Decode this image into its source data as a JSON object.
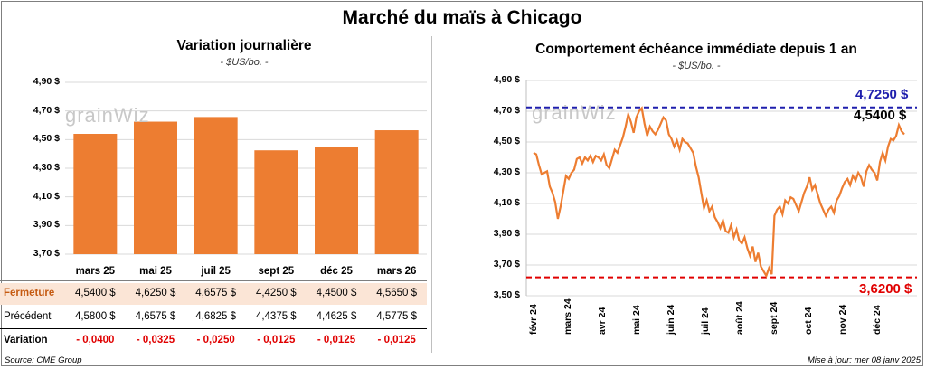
{
  "title": "Marché du maïs à Chicago",
  "left_panel": {
    "subtitle": "Variation journalière",
    "unit": "- $US/bo. -",
    "watermark": "grainWiz",
    "table": {
      "rows": [
        {
          "label": "Fermeture",
          "values": [
            "4,5400  $",
            "4,6250  $",
            "4,6575  $",
            "4,4250  $",
            "4,4500  $",
            "4,5650  $"
          ]
        },
        {
          "label": "Précédent",
          "values": [
            "4,5800  $",
            "4,6575  $",
            "4,6825  $",
            "4,4375  $",
            "4,4625  $",
            "4,5775  $"
          ]
        },
        {
          "label": "Variation",
          "values": [
            "- 0,0400",
            "- 0,0325",
            "- 0,0250",
            "- 0,0125",
            "- 0,0125",
            "- 0,0125"
          ]
        }
      ]
    }
  },
  "right_panel": {
    "subtitle": "Comportement  échéance  immédiate  depuis  1 an",
    "unit": "- $US/bo. -",
    "watermark": "grainWiz",
    "labels": {
      "max": "4,7250 $",
      "last": "4,5400 $",
      "min": "3,6200 $"
    }
  },
  "footer": {
    "source": "Source: CME Group",
    "updated": "Mise à jour: mer 08 janv 2025"
  },
  "colors": {
    "bar": "#ed7d31",
    "line": "#ed7d31",
    "max_line": "#1f1fad",
    "min_line": "#e00000",
    "highlight_row": "#fbe5d6",
    "negative": "#e00000"
  },
  "chart_data": [
    {
      "type": "bar",
      "title": "Variation journalière",
      "subtitle": "- $US/bo. -",
      "categories": [
        "mars 25",
        "mai 25",
        "juil 25",
        "sept 25",
        "déc 25",
        "mars 26"
      ],
      "values": [
        4.54,
        4.625,
        4.6575,
        4.425,
        4.45,
        4.565
      ],
      "ylim": [
        3.7,
        4.9
      ],
      "yticks": [
        "3,70 $",
        "3,90 $",
        "4,10 $",
        "4,30 $",
        "4,50 $",
        "4,70 $",
        "4,90 $"
      ],
      "grid": true
    },
    {
      "type": "line",
      "title": "Comportement  échéance  immédiate  depuis  1 an",
      "subtitle": "- $US/bo. -",
      "x_ticks": [
        "févr 24",
        "mars 24",
        "avr 24",
        "mai 24",
        "juin 24",
        "juil 24",
        "août 24",
        "sept 24",
        "oct 24",
        "nov 24",
        "déc 24"
      ],
      "ylim": [
        3.5,
        4.9
      ],
      "yticks": [
        "3,50 $",
        "3,70 $",
        "3,90 $",
        "4,10 $",
        "4,30 $",
        "4,50 $",
        "4,70 $",
        "4,90 $"
      ],
      "series": [
        {
          "values": [
            4.43,
            4.42,
            4.35,
            4.29,
            4.3,
            4.31,
            4.21,
            4.17,
            4.11,
            4.0,
            4.08,
            4.18,
            4.28,
            4.26,
            4.3,
            4.32,
            4.39,
            4.4,
            4.36,
            4.4,
            4.38,
            4.41,
            4.37,
            4.41,
            4.4,
            4.38,
            4.42,
            4.35,
            4.33,
            4.39,
            4.45,
            4.43,
            4.48,
            4.53,
            4.6,
            4.68,
            4.63,
            4.56,
            4.66,
            4.7,
            4.72,
            4.62,
            4.54,
            4.6,
            4.57,
            4.55,
            4.58,
            4.62,
            4.66,
            4.64,
            4.55,
            4.52,
            4.47,
            4.51,
            4.45,
            4.52,
            4.5,
            4.49,
            4.46,
            4.43,
            4.34,
            4.27,
            4.17,
            4.07,
            4.12,
            4.05,
            4.08,
            4.01,
            3.98,
            3.94,
            3.99,
            3.92,
            3.91,
            3.96,
            3.88,
            3.93,
            3.86,
            3.84,
            3.88,
            3.81,
            3.76,
            3.82,
            3.72,
            3.78,
            3.69,
            3.66,
            3.63,
            3.68,
            3.64,
            4.02,
            4.06,
            4.08,
            4.03,
            4.12,
            4.1,
            4.14,
            4.13,
            4.09,
            4.05,
            4.11,
            4.17,
            4.21,
            4.27,
            4.19,
            4.22,
            4.16,
            4.1,
            4.06,
            4.02,
            4.06,
            4.08,
            4.04,
            4.12,
            4.15,
            4.2,
            4.24,
            4.26,
            4.22,
            4.28,
            4.25,
            4.3,
            4.27,
            4.21,
            4.31,
            4.35,
            4.32,
            4.3,
            4.25,
            4.37,
            4.43,
            4.38,
            4.47,
            4.52,
            4.51,
            4.54,
            4.61,
            4.57,
            4.55
          ],
          "min": 3.62,
          "max": 4.725,
          "last": 4.54
        }
      ],
      "grid": true
    }
  ]
}
